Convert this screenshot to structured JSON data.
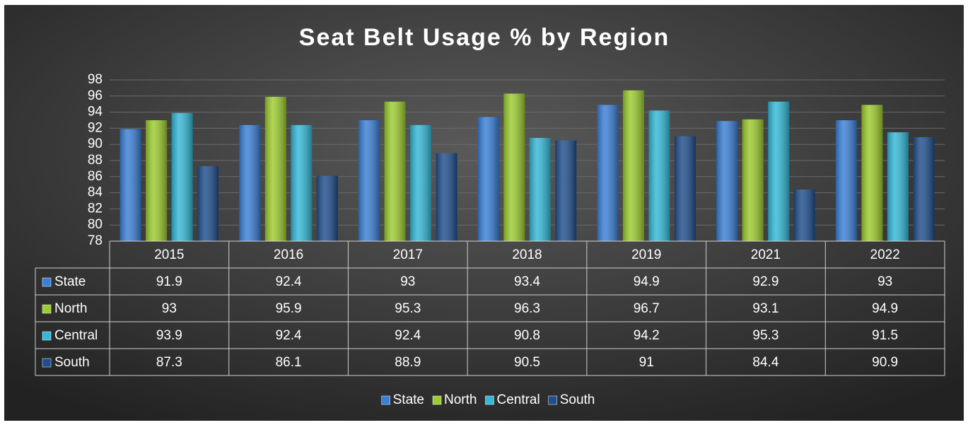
{
  "chart_data": {
    "type": "bar",
    "title": "Seat Belt Usage % by Region",
    "categories": [
      "2015",
      "2016",
      "2017",
      "2018",
      "2019",
      "2021",
      "2022"
    ],
    "series": [
      {
        "name": "State",
        "color": "#3a7fd6",
        "values": [
          91.9,
          92.4,
          93,
          93.4,
          94.9,
          92.9,
          93
        ]
      },
      {
        "name": "North",
        "color": "#9ccc2e",
        "values": [
          93,
          95.9,
          95.3,
          96.3,
          96.7,
          93.1,
          94.9
        ]
      },
      {
        "name": "Central",
        "color": "#33b8d6",
        "values": [
          93.9,
          92.4,
          92.4,
          90.8,
          94.2,
          95.3,
          91.5
        ]
      },
      {
        "name": "South",
        "color": "#1f4e8c",
        "values": [
          87.3,
          86.1,
          88.9,
          90.5,
          91,
          84.4,
          90.9
        ]
      }
    ],
    "ylim": [
      78,
      98
    ],
    "yticks": [
      78,
      80,
      82,
      84,
      86,
      88,
      90,
      92,
      94,
      96,
      98
    ],
    "grid": true,
    "legend": "bottom",
    "data_table": true
  }
}
